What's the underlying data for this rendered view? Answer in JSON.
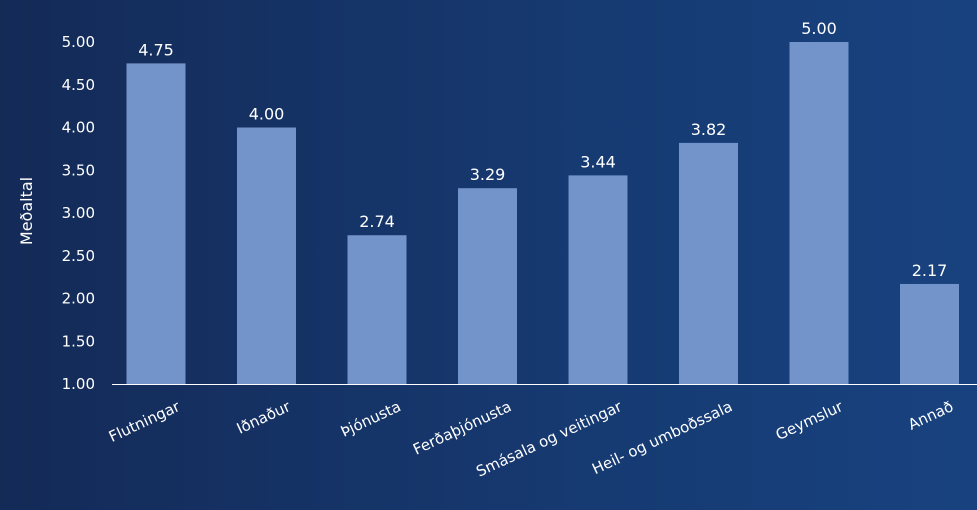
{
  "chart_data": {
    "type": "bar",
    "title": "",
    "xlabel": "",
    "ylabel": "Meðaltal",
    "ylim": [
      1.0,
      5.0
    ],
    "yticks": [
      "1.00",
      "1.50",
      "2.00",
      "2.50",
      "3.00",
      "3.50",
      "4.00",
      "4.50",
      "5.00"
    ],
    "categories": [
      "Flutningar",
      "Iðnaður",
      "Þjónusta",
      "Ferðaþjónusta",
      "Smásala og veitingar",
      "Heil- og umboðssala",
      "Geymslur",
      "Annað"
    ],
    "values": [
      4.75,
      4.0,
      2.74,
      3.29,
      3.44,
      3.82,
      5.0,
      2.17
    ],
    "value_labels": [
      "4.75",
      "4.00",
      "2.74",
      "3.29",
      "3.44",
      "3.82",
      "5.00",
      "2.17"
    ],
    "grid": false,
    "legend": "none",
    "colors": {
      "bar": "#7393cb",
      "text": "#ffffff",
      "axis": "#ffffff"
    }
  }
}
